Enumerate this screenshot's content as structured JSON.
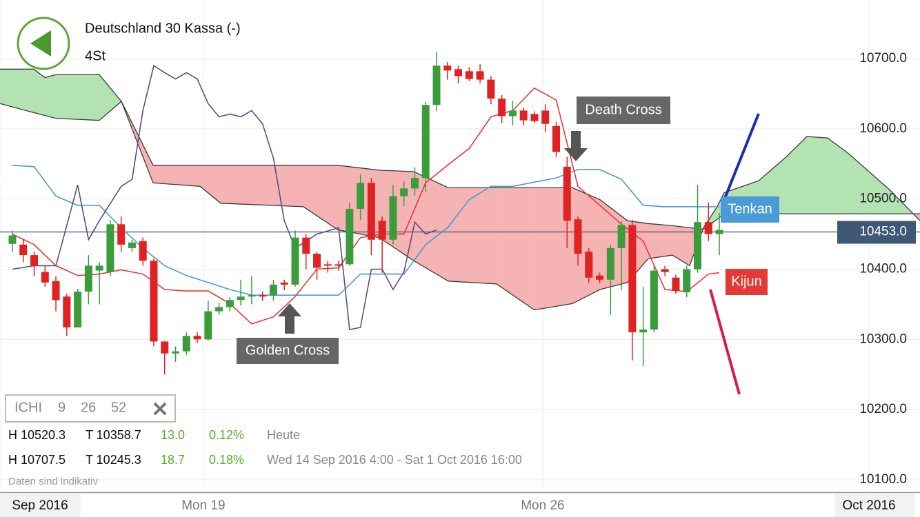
{
  "header": {
    "title": "Deutschland 30 Kassa (-)",
    "interval": "4St"
  },
  "indicator": {
    "name": "ICHI",
    "params": [
      "9",
      "26",
      "52"
    ]
  },
  "stats": [
    [
      "H 10520.3",
      "T 10358.7",
      "13.0",
      "0.12%",
      "Heute"
    ],
    [
      "H 10707.5",
      "T 10245.3",
      "18.7",
      "0.18%",
      "Wed 14 Sep 2016 4:00 - Sat 1 Oct 2016 16:00"
    ]
  ],
  "disclaimer": "Daten sind indikativ",
  "chart_data": {
    "type": "candlestick",
    "up_color": "#3c9c3c",
    "down_color": "#e02222",
    "open": [
      10436,
      10435,
      10420,
      10396,
      10383,
      10361,
      10317,
      10368,
      10398,
      10396,
      10464,
      10430,
      10440,
      10412,
      10297,
      10280,
      10283,
      10305,
      10300,
      10340,
      10346,
      10356,
      10361,
      10363,
      10363,
      10381,
      10378,
      10445,
      10422,
      10407,
      10407,
      10407,
      10486,
      10523,
      10469,
      10442,
      10504,
      10515,
      10530,
      10634,
      10690,
      10685,
      10682,
      10682,
      10670,
      10643,
      10618,
      10626,
      10621,
      10626,
      10604,
      10546,
      10471,
      10425,
      10391,
      10385,
      10430,
      10463,
      10310,
      10314,
      10400,
      10388,
      10367,
      10400,
      10467,
      10450
    ],
    "high": [
      10455,
      10442,
      10425,
      10405,
      10390,
      10365,
      10372,
      10420,
      10410,
      10470,
      10475,
      10442,
      10445,
      10415,
      10297,
      10290,
      10310,
      10310,
      10355,
      10352,
      10360,
      10385,
      10390,
      10368,
      10385,
      10385,
      10455,
      10450,
      10425,
      10412,
      10412,
      10495,
      10535,
      10530,
      10475,
      10520,
      10525,
      10545,
      10638,
      10710,
      10695,
      10690,
      10688,
      10692,
      10675,
      10648,
      10640,
      10630,
      10625,
      10635,
      10610,
      10560,
      10475,
      10430,
      10395,
      10435,
      10468,
      10470,
      10375,
      10405,
      10405,
      10392,
      10405,
      10520,
      10495,
      10480
    ],
    "low": [
      10425,
      10410,
      10390,
      10375,
      10340,
      10305,
      10317,
      10350,
      10350,
      10390,
      10425,
      10425,
      10405,
      10290,
      10250,
      10268,
      10278,
      10295,
      10298,
      10335,
      10340,
      10348,
      10350,
      10355,
      10355,
      10370,
      10375,
      10400,
      10385,
      10395,
      10398,
      10405,
      10470,
      10420,
      10395,
      10435,
      10490,
      10505,
      10510,
      10625,
      10670,
      10665,
      10668,
      10665,
      10635,
      10608,
      10605,
      10605,
      10608,
      10595,
      10560,
      10430,
      10405,
      10380,
      10380,
      10335,
      10370,
      10270,
      10262,
      10310,
      10390,
      10365,
      10360,
      10395,
      10440,
      10420
    ],
    "close": [
      10448,
      10420,
      10405,
      10381,
      10356,
      10317,
      10368,
      10405,
      10405,
      10464,
      10435,
      10438,
      10412,
      10297,
      10280,
      10283,
      10305,
      10300,
      10340,
      10346,
      10356,
      10361,
      10363,
      10361,
      10378,
      10378,
      10445,
      10422,
      10402,
      10405,
      10405,
      10486,
      10523,
      10442,
      10442,
      10504,
      10515,
      10530,
      10634,
      10690,
      10683,
      10675,
      10671,
      10670,
      10643,
      10618,
      10626,
      10612,
      10611,
      10607,
      10567,
      10469,
      10422,
      10388,
      10385,
      10430,
      10463,
      10310,
      10314,
      10398,
      10396,
      10369,
      10400,
      10467,
      10450,
      10456
    ],
    "series": [
      {
        "name": "Tenkan",
        "color": "#4a9ad6",
        "x": [
          0,
          2,
          4,
          6,
          8,
          10,
          12,
          14,
          16,
          18,
          20,
          22,
          24,
          26,
          28,
          30,
          32,
          34,
          36,
          38,
          40,
          42,
          44,
          46,
          48,
          50,
          52,
          54,
          56,
          58,
          60,
          62,
          64,
          65
        ],
        "values": [
          10548,
          10546,
          10504,
          10491,
          10491,
          10459,
          10430,
          10405,
          10391,
          10381,
          10371,
          10363,
          10363,
          10363,
          10363,
          10363,
          10393,
          10393,
          10393,
          10435,
          10459,
          10499,
          10518,
          10518,
          10524,
          10530,
          10542,
          10542,
          10528,
          10491,
          10489,
          10489,
          10489,
          10489
        ]
      },
      {
        "name": "Kijun",
        "color": "#e53935",
        "x": [
          0,
          2,
          4,
          6,
          8,
          10,
          12,
          14,
          16,
          18,
          20,
          22,
          24,
          26,
          28,
          30,
          32,
          34,
          36,
          38,
          40,
          42,
          44,
          46,
          48,
          50,
          52,
          54,
          56,
          58,
          60,
          62,
          64,
          65
        ],
        "values": [
          10450,
          10435,
          10405,
          10391,
          10393,
          10399,
          10393,
          10371,
          10369,
          10369,
          10351,
          10322,
          10332,
          10361,
          10400,
          10402,
          10445,
          10450,
          10450,
          10523,
          10548,
          10572,
          10617,
          10626,
          10658,
          10641,
          10518,
          10491,
          10464,
          10440,
          10371,
          10368,
          10393,
          10395
        ]
      },
      {
        "color": "#5b4b8b",
        "x": [
          0,
          2,
          4,
          6,
          7,
          8,
          10,
          11,
          12,
          13,
          14,
          15,
          16,
          17,
          18,
          19,
          20,
          21,
          22,
          23,
          24,
          25,
          26,
          27,
          28,
          30,
          31,
          32,
          33,
          34,
          35,
          36,
          37,
          38,
          39
        ],
        "values": [
          10400,
          10405,
          10405,
          10520,
          10442,
          10469,
          10518,
          10528,
          10626,
          10690,
          10680,
          10671,
          10680,
          10671,
          10636,
          10617,
          10621,
          10617,
          10626,
          10607,
          10558,
          10469,
          10430,
          10440,
          10450,
          10459,
          10314,
          10317,
          10400,
          10400,
          10371,
          10396,
          10467,
          10450,
          10456
        ]
      }
    ],
    "cloud": {
      "up_color": "#b3e2b3",
      "down_color": "#f5b3b3",
      "line_color": "#3a3a3a",
      "x": [
        -1.14,
        1.97,
        2.98,
        3.99,
        7.99,
        10.02,
        12.94,
        17.25,
        19.15,
        26.76,
        29.93,
        33.73,
        36.91,
        40.08,
        44.51,
        48.0,
        51.49,
        54.03,
        56.56,
        58.46,
        60.68,
        62.27,
        63.54,
        64.8,
        65.44,
        68.61,
        71.15,
        73.05,
        74.95,
        76.86,
        80.66,
        83.45
      ],
      "span_a": [
        10685,
        10685,
        10673,
        10677,
        10677,
        10639,
        10523,
        10518,
        10494,
        10489,
        10456,
        10445,
        10412,
        10383,
        10379,
        10342,
        10351,
        10371,
        10381,
        10415,
        10420,
        10405,
        10459,
        10489,
        10509,
        10526,
        10560,
        10589,
        10587,
        10565,
        10513,
        10469
      ],
      "span_b": [
        10636,
        10623,
        10619,
        10615,
        10612,
        10639,
        10548,
        10548,
        10548,
        10548,
        10548,
        10541,
        10539,
        10516,
        10516,
        10516,
        10516,
        10499,
        10469,
        10465,
        10462,
        10459,
        10457,
        10471,
        10479,
        10479,
        10479,
        10479,
        10479,
        10479,
        10479,
        10479
      ]
    },
    "current_price": {
      "value": 10453,
      "label": "10453.0"
    },
    "annotations": [
      "Death Cross",
      "Golden Cross"
    ],
    "xlim": [
      -1.14,
      83.45
    ],
    "ylim": [
      10082.3,
      10783.5
    ],
    "yticks": [
      {
        "value": 10100,
        "label": "10100.0"
      },
      {
        "value": 10200,
        "label": "10200.0"
      },
      {
        "value": 10300,
        "label": "10300.0"
      },
      {
        "value": 10400,
        "label": "10400.0"
      },
      {
        "value": 10500,
        "label": "10500.0"
      },
      {
        "value": 10600,
        "label": "10600.0"
      },
      {
        "value": 10700,
        "label": "10700.0"
      }
    ],
    "xticks": [
      {
        "value": -1.14,
        "label": "Sep 2016"
      },
      {
        "value": 17.56,
        "label": "Mon 19"
      },
      {
        "value": 48.76,
        "label": "Mon 26"
      },
      {
        "value": 78.76,
        "label": "Oct 2016"
      }
    ],
    "grid": true
  }
}
